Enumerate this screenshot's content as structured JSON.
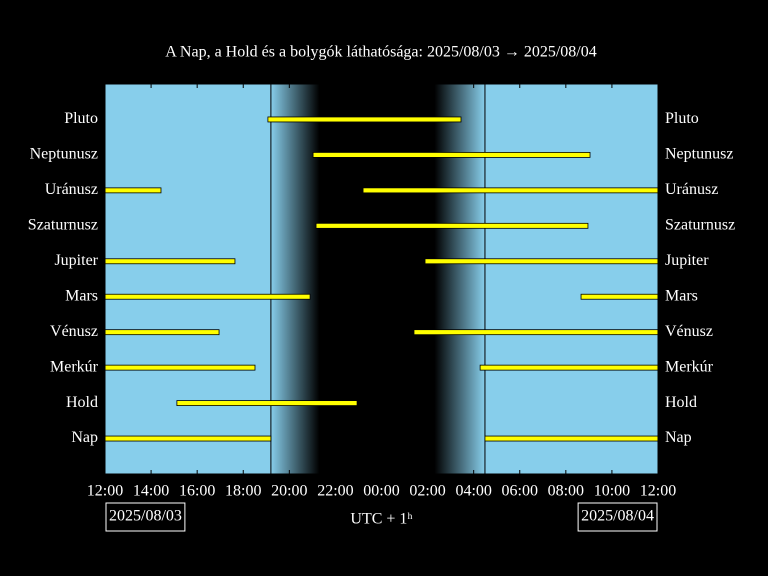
{
  "chart_data": {
    "type": "timeline",
    "title": "A Nap, a Hold és a bolygók láthatósága: 2025/08/03 → 2025/08/04",
    "xlabel": "UTC + 1ʰ",
    "start_date": "2025/08/03",
    "end_date": "2025/08/04",
    "xlim": [
      0,
      24
    ],
    "xticks": [
      {
        "value": 0,
        "label": "12:00"
      },
      {
        "value": 2,
        "label": "14:00"
      },
      {
        "value": 4,
        "label": "16:00"
      },
      {
        "value": 6,
        "label": "18:00"
      },
      {
        "value": 8,
        "label": "20:00"
      },
      {
        "value": 10,
        "label": "22:00"
      },
      {
        "value": 12,
        "label": "00:00"
      },
      {
        "value": 14,
        "label": "02:00"
      },
      {
        "value": 16,
        "label": "04:00"
      },
      {
        "value": 18,
        "label": "06:00"
      },
      {
        "value": 20,
        "label": "08:00"
      },
      {
        "value": 22,
        "label": "10:00"
      },
      {
        "value": 24,
        "label": "12:00"
      }
    ],
    "color": "#ffff00",
    "day_color": "#87ceeb",
    "night_color": "#000000",
    "night": {
      "sunset": 7.2,
      "dark_start": 9.3,
      "dark_end": 14.3,
      "sunrise": 16.49
    },
    "series": [
      {
        "name": "Pluto",
        "start": [
          7.07
        ],
        "end": [
          15.45
        ]
      },
      {
        "name": "Neptunusz",
        "start": [
          9.03
        ],
        "end": [
          21.05
        ]
      },
      {
        "name": "Uránusz",
        "start": [
          0,
          11.2
        ],
        "end": [
          2.43,
          24
        ]
      },
      {
        "name": "Szaturnusz",
        "start": [
          9.16
        ],
        "end": [
          20.96
        ]
      },
      {
        "name": "Jupiter",
        "start": [
          0,
          13.89
        ],
        "end": [
          5.64,
          24
        ]
      },
      {
        "name": "Mars",
        "start": [
          0,
          20.66
        ],
        "end": [
          8.9,
          24
        ]
      },
      {
        "name": "Vénusz",
        "start": [
          0,
          13.41
        ],
        "end": [
          4.95,
          24
        ]
      },
      {
        "name": "Merkúr",
        "start": [
          0,
          16.28
        ],
        "end": [
          6.51,
          24
        ]
      },
      {
        "name": "Hold",
        "start": [
          3.12
        ],
        "end": [
          10.94
        ]
      },
      {
        "name": "Nap",
        "start": [
          0,
          16.49
        ],
        "end": [
          7.2,
          24
        ]
      }
    ]
  }
}
